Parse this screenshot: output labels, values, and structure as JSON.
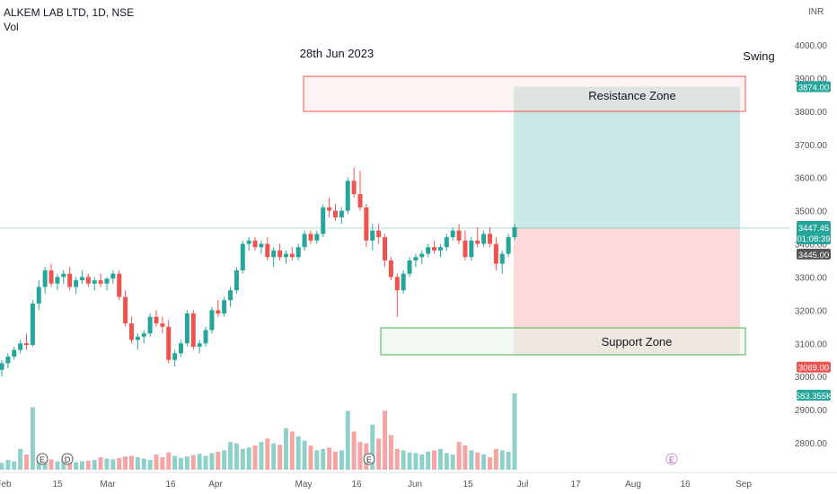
{
  "header": {
    "symbol": "ALKEM LAB LTD, 1D, NSE",
    "volume_label": "Vol"
  },
  "annotations": {
    "date_text": "28th Jun 2023",
    "swing_text": "Swing",
    "resistance_label": "Resistance Zone",
    "support_label": "Support Zone"
  },
  "price_axis": {
    "currency": "INR",
    "ticks": [
      "4000.00",
      "3900.00",
      "3800.00",
      "3700.00",
      "3600.00",
      "3500.00",
      "3400.00",
      "3300.00",
      "3200.00",
      "3100.00",
      "3000.00",
      "2900.00",
      "2800.00"
    ],
    "tags": {
      "target": "3874.00",
      "last": "3447.45",
      "countdown": "01:08:39",
      "entry": "3445.00",
      "stop": "3069.00",
      "volume": "583.355K"
    }
  },
  "time_axis": {
    "ticks": [
      "Feb",
      "15",
      "Mar",
      "16",
      "Apr",
      "May",
      "16",
      "Jun",
      "15",
      "Jul",
      "17",
      "Aug",
      "16",
      "Sep"
    ]
  },
  "event_markers": [
    "E",
    "D",
    "E",
    "E"
  ],
  "colors": {
    "up": "#26a69a",
    "down": "#ef5350",
    "vol_up": "#8fd1c9",
    "vol_down": "#f4a5a4",
    "target_zone": "#b2dfdb",
    "stop_zone": "#fbcfcf",
    "resistance_border": "#ef5350",
    "support_border": "#4caf50"
  },
  "chart_data": {
    "type": "candlestick",
    "title": "ALKEM LAB LTD, 1D, NSE",
    "ylim": [
      2720,
      4100
    ],
    "candles": [
      [
        3020,
        3050,
        3000,
        3040
      ],
      [
        3040,
        3070,
        3025,
        3060
      ],
      [
        3060,
        3090,
        3050,
        3080
      ],
      [
        3080,
        3110,
        3070,
        3100
      ],
      [
        3100,
        3130,
        3080,
        3095
      ],
      [
        3095,
        3230,
        3090,
        3220
      ],
      [
        3220,
        3290,
        3200,
        3270
      ],
      [
        3270,
        3330,
        3250,
        3320
      ],
      [
        3320,
        3340,
        3270,
        3280
      ],
      [
        3280,
        3310,
        3260,
        3300
      ],
      [
        3300,
        3320,
        3280,
        3310
      ],
      [
        3310,
        3330,
        3260,
        3270
      ],
      [
        3270,
        3300,
        3250,
        3290
      ],
      [
        3290,
        3320,
        3280,
        3300
      ],
      [
        3300,
        3310,
        3270,
        3280
      ],
      [
        3280,
        3300,
        3260,
        3290
      ],
      [
        3290,
        3310,
        3270,
        3280
      ],
      [
        3280,
        3300,
        3260,
        3295
      ],
      [
        3295,
        3320,
        3280,
        3310
      ],
      [
        3310,
        3320,
        3230,
        3240
      ],
      [
        3240,
        3260,
        3150,
        3160
      ],
      [
        3160,
        3180,
        3100,
        3110
      ],
      [
        3110,
        3130,
        3080,
        3120
      ],
      [
        3120,
        3140,
        3100,
        3130
      ],
      [
        3130,
        3190,
        3120,
        3180
      ],
      [
        3180,
        3200,
        3150,
        3160
      ],
      [
        3160,
        3180,
        3130,
        3150
      ],
      [
        3150,
        3170,
        3040,
        3050
      ],
      [
        3050,
        3080,
        3030,
        3070
      ],
      [
        3070,
        3110,
        3060,
        3100
      ],
      [
        3100,
        3200,
        3090,
        3190
      ],
      [
        3190,
        3200,
        3080,
        3090
      ],
      [
        3090,
        3110,
        3070,
        3100
      ],
      [
        3100,
        3150,
        3090,
        3140
      ],
      [
        3140,
        3210,
        3130,
        3200
      ],
      [
        3200,
        3230,
        3180,
        3190
      ],
      [
        3190,
        3240,
        3180,
        3230
      ],
      [
        3230,
        3270,
        3210,
        3260
      ],
      [
        3260,
        3330,
        3250,
        3320
      ],
      [
        3320,
        3410,
        3310,
        3400
      ],
      [
        3400,
        3420,
        3380,
        3410
      ],
      [
        3410,
        3420,
        3380,
        3390
      ],
      [
        3390,
        3410,
        3370,
        3400
      ],
      [
        3400,
        3420,
        3350,
        3360
      ],
      [
        3360,
        3390,
        3330,
        3380
      ],
      [
        3380,
        3400,
        3350,
        3360
      ],
      [
        3360,
        3380,
        3340,
        3370
      ],
      [
        3370,
        3390,
        3350,
        3360
      ],
      [
        3360,
        3400,
        3350,
        3390
      ],
      [
        3390,
        3440,
        3380,
        3430
      ],
      [
        3430,
        3440,
        3400,
        3410
      ],
      [
        3410,
        3440,
        3400,
        3430
      ],
      [
        3430,
        3520,
        3420,
        3510
      ],
      [
        3510,
        3540,
        3480,
        3500
      ],
      [
        3500,
        3520,
        3470,
        3480
      ],
      [
        3480,
        3510,
        3460,
        3500
      ],
      [
        3500,
        3600,
        3490,
        3590
      ],
      [
        3590,
        3630,
        3540,
        3550
      ],
      [
        3550,
        3620,
        3500,
        3510
      ],
      [
        3510,
        3520,
        3390,
        3410
      ],
      [
        3410,
        3460,
        3380,
        3440
      ],
      [
        3440,
        3460,
        3400,
        3420
      ],
      [
        3420,
        3430,
        3330,
        3350
      ],
      [
        3350,
        3360,
        3290,
        3300
      ],
      [
        3300,
        3310,
        3180,
        3260
      ],
      [
        3260,
        3320,
        3250,
        3310
      ],
      [
        3310,
        3360,
        3300,
        3350
      ],
      [
        3350,
        3370,
        3330,
        3360
      ],
      [
        3360,
        3380,
        3340,
        3370
      ],
      [
        3370,
        3400,
        3360,
        3390
      ],
      [
        3390,
        3410,
        3370,
        3380
      ],
      [
        3380,
        3400,
        3360,
        3390
      ],
      [
        3390,
        3430,
        3380,
        3420
      ],
      [
        3420,
        3450,
        3410,
        3440
      ],
      [
        3440,
        3460,
        3400,
        3410
      ],
      [
        3410,
        3440,
        3350,
        3360
      ],
      [
        3360,
        3420,
        3350,
        3410
      ],
      [
        3410,
        3450,
        3390,
        3400
      ],
      [
        3400,
        3440,
        3390,
        3430
      ],
      [
        3430,
        3450,
        3390,
        3400
      ],
      [
        3400,
        3420,
        3320,
        3340
      ],
      [
        3340,
        3380,
        3310,
        3370
      ],
      [
        3370,
        3430,
        3360,
        3420
      ],
      [
        3420,
        3460,
        3410,
        3450
      ]
    ],
    "volume": [
      10,
      14,
      12,
      30,
      22,
      90,
      18,
      16,
      15,
      12,
      14,
      13,
      11,
      12,
      13,
      14,
      18,
      16,
      15,
      17,
      19,
      20,
      18,
      16,
      14,
      22,
      18,
      25,
      20,
      17,
      19,
      21,
      23,
      20,
      24,
      26,
      28,
      40,
      38,
      30,
      32,
      35,
      40,
      45,
      38,
      36,
      60,
      55,
      48,
      42,
      35,
      28,
      30,
      32,
      26,
      28,
      85,
      55,
      40,
      38,
      65,
      45,
      85,
      50,
      30,
      28,
      25,
      24,
      22,
      26,
      28,
      30,
      24,
      22,
      40,
      35,
      28,
      25,
      22,
      18,
      30,
      28,
      26,
      110
    ]
  }
}
